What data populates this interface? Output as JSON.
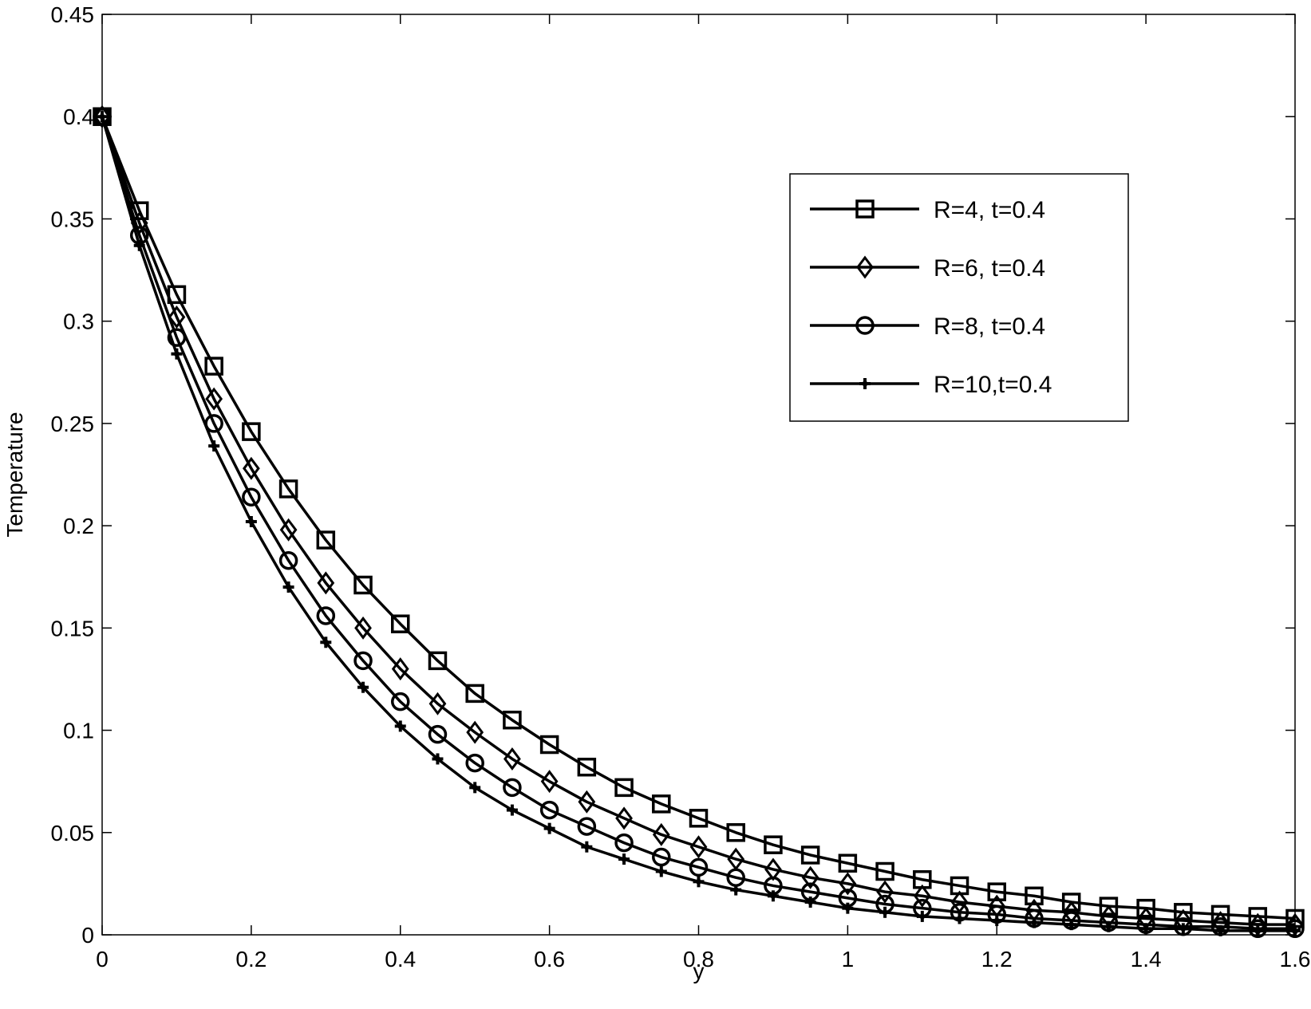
{
  "chart_data": {
    "type": "line",
    "title": "",
    "xlabel": "y",
    "ylabel": "Temperature",
    "xlim": [
      0,
      1.6
    ],
    "ylim": [
      0,
      0.45
    ],
    "xticks": [
      "0",
      "0.2",
      "0.4",
      "0.6",
      "0.8",
      "1",
      "1.2",
      "1.4",
      "1.6"
    ],
    "yticks": [
      "0",
      "0.05",
      "0.1",
      "0.15",
      "0.2",
      "0.25",
      "0.3",
      "0.35",
      "0.4",
      "0.45"
    ],
    "grid": false,
    "legend_position": "top-right",
    "x": [
      0,
      0.05,
      0.1,
      0.15,
      0.2,
      0.25,
      0.3,
      0.35,
      0.4,
      0.45,
      0.5,
      0.55,
      0.6,
      0.65,
      0.7,
      0.75,
      0.8,
      0.85,
      0.9,
      0.95,
      1.0,
      1.05,
      1.1,
      1.15,
      1.2,
      1.25,
      1.3,
      1.35,
      1.4,
      1.45,
      1.5,
      1.55,
      1.6
    ],
    "series": [
      {
        "name": "R=4, t=0.4",
        "marker": "square",
        "values": [
          0.4,
          0.354,
          0.313,
          0.278,
          0.246,
          0.218,
          0.193,
          0.171,
          0.152,
          0.134,
          0.118,
          0.105,
          0.093,
          0.082,
          0.072,
          0.064,
          0.057,
          0.05,
          0.044,
          0.039,
          0.035,
          0.031,
          0.027,
          0.024,
          0.021,
          0.019,
          0.016,
          0.014,
          0.013,
          0.011,
          0.01,
          0.009,
          0.008
        ]
      },
      {
        "name": "R=6, t=0.4",
        "marker": "diamond",
        "values": [
          0.4,
          0.348,
          0.302,
          0.262,
          0.228,
          0.198,
          0.172,
          0.15,
          0.13,
          0.113,
          0.099,
          0.086,
          0.075,
          0.065,
          0.057,
          0.049,
          0.043,
          0.037,
          0.032,
          0.028,
          0.025,
          0.021,
          0.019,
          0.016,
          0.014,
          0.012,
          0.011,
          0.009,
          0.008,
          0.007,
          0.006,
          0.005,
          0.005
        ]
      },
      {
        "name": "R=8, t=0.4",
        "marker": "circle",
        "values": [
          0.4,
          0.342,
          0.292,
          0.25,
          0.214,
          0.183,
          0.156,
          0.134,
          0.114,
          0.098,
          0.084,
          0.072,
          0.061,
          0.053,
          0.045,
          0.038,
          0.033,
          0.028,
          0.024,
          0.021,
          0.018,
          0.015,
          0.013,
          0.011,
          0.01,
          0.008,
          0.007,
          0.006,
          0.005,
          0.004,
          0.004,
          0.003,
          0.003
        ]
      },
      {
        "name": "R=10,t=0.4",
        "marker": "star",
        "values": [
          0.4,
          0.337,
          0.284,
          0.239,
          0.202,
          0.17,
          0.143,
          0.121,
          0.102,
          0.086,
          0.072,
          0.061,
          0.052,
          0.043,
          0.037,
          0.031,
          0.026,
          0.022,
          0.019,
          0.016,
          0.013,
          0.011,
          0.009,
          0.008,
          0.007,
          0.006,
          0.005,
          0.004,
          0.003,
          0.003,
          0.002,
          0.002,
          0.002
        ]
      }
    ]
  },
  "colors": {
    "line": "#000000",
    "background": "#ffffff",
    "axis": "#000000"
  }
}
